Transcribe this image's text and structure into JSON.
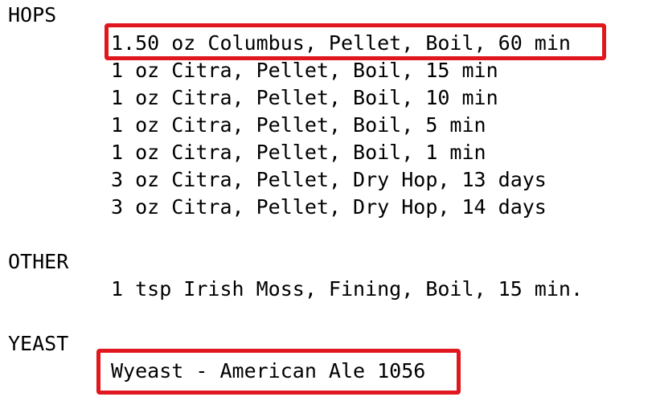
{
  "hops": {
    "heading": "HOPS",
    "items": [
      "1.50 oz Columbus, Pellet, Boil, 60 min",
      "1 oz Citra, Pellet, Boil, 15 min",
      "1 oz Citra, Pellet, Boil, 10 min",
      "1 oz Citra, Pellet, Boil, 5 min",
      "1 oz Citra, Pellet, Boil, 1 min",
      "3 oz Citra, Pellet, Dry Hop, 13 days",
      "3 oz Citra, Pellet, Dry Hop, 14 days"
    ]
  },
  "other": {
    "heading": "OTHER",
    "items": [
      "1 tsp Irish Moss, Fining, Boil, 15 min."
    ]
  },
  "yeast": {
    "heading": "YEAST",
    "items": [
      "Wyeast - American Ale 1056"
    ]
  },
  "highlight_color": "#e0171f"
}
